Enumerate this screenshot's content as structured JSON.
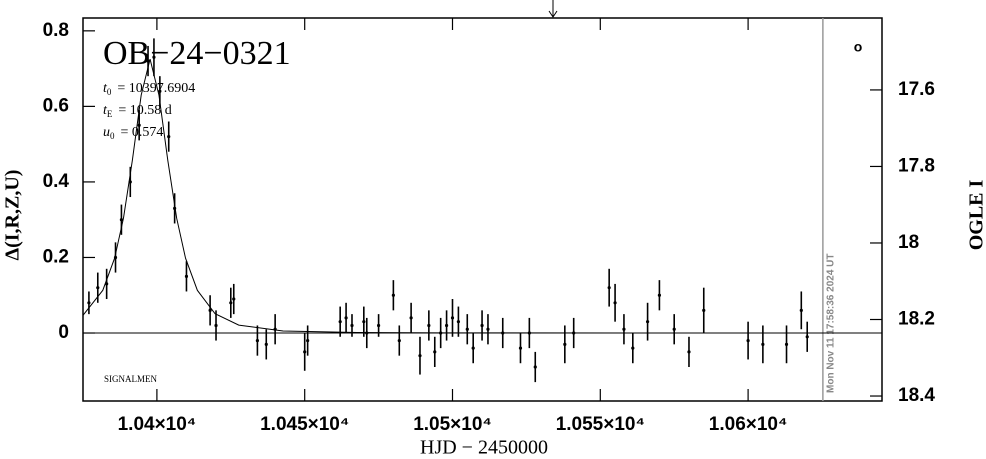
{
  "chart_data": {
    "type": "scatter",
    "title": "OB−24−0321",
    "parameters": [
      {
        "symbol": "t",
        "sub": "0",
        "text": "= 10397.6904"
      },
      {
        "symbol": "t",
        "sub": "E",
        "text": "= 10.58 d"
      },
      {
        "symbol": "u",
        "sub": "0",
        "text": "= 0.574"
      }
    ],
    "credit": "SIGNALMEN",
    "symbol_label": "o",
    "xlabel": "HJD − 2450000",
    "ylabel": "Δ(I,R,Z,U)",
    "y2label": "OGLE I",
    "xlim": [
      10375,
      10645.3
    ],
    "ylim": [
      -0.18,
      0.834
    ],
    "y2lim": [
      18.413,
      17.412
    ],
    "xticks": [
      {
        "value": 10400,
        "label": "1.04×10⁴"
      },
      {
        "value": 10450,
        "label": "1.045×10⁴"
      },
      {
        "value": 10500,
        "label": "1.05×10⁴"
      },
      {
        "value": 10550,
        "label": "1.055×10⁴"
      },
      {
        "value": 10600,
        "label": "1.06×10⁴"
      }
    ],
    "yticks": [
      0,
      0.2,
      0.4,
      0.6,
      0.8
    ],
    "y2ticks": [
      17.6,
      17.8,
      18,
      18.2,
      18.4
    ],
    "date_line": {
      "x": 10625.3,
      "label": "Mon Nov 11 17:58:36 2024 UT"
    },
    "arrow_x": 10534,
    "color": "#000000",
    "x": [
      10377,
      10380,
      10383,
      10386,
      10388,
      10391,
      10394,
      10397,
      10399,
      10401,
      10404,
      10406,
      10410,
      10418,
      10420,
      10425,
      10426,
      10434,
      10437,
      10440,
      10450,
      10451,
      10462,
      10464,
      10466,
      10470,
      10471,
      10475,
      10480,
      10482,
      10486,
      10489,
      10492,
      10494,
      10496,
      10498,
      10500,
      10502,
      10505,
      10507,
      10510,
      10512,
      10517,
      10523,
      10526,
      10528,
      10538,
      10541,
      10553,
      10555,
      10558,
      10561,
      10566,
      10570,
      10575,
      10580,
      10585,
      10600,
      10605,
      10613,
      10618,
      10620
    ],
    "values": [
      0.08,
      0.12,
      0.13,
      0.2,
      0.3,
      0.4,
      0.55,
      0.72,
      0.73,
      0.64,
      0.52,
      0.33,
      0.15,
      0.06,
      0.02,
      0.08,
      0.09,
      -0.02,
      -0.03,
      0.01,
      -0.05,
      -0.02,
      0.03,
      0.04,
      0.02,
      0.03,
      0.0,
      0.02,
      0.1,
      -0.02,
      0.04,
      -0.06,
      0.02,
      -0.05,
      0.0,
      0.02,
      0.04,
      0.03,
      0.01,
      -0.04,
      0.02,
      0.01,
      0.0,
      -0.04,
      0.0,
      -0.09,
      -0.03,
      0.0,
      0.12,
      0.08,
      0.01,
      -0.04,
      0.03,
      0.1,
      0.01,
      -0.05,
      0.06,
      -0.02,
      -0.03,
      -0.03,
      0.06,
      -0.01
    ],
    "errors": [
      0.03,
      0.04,
      0.04,
      0.04,
      0.04,
      0.04,
      0.04,
      0.04,
      0.05,
      0.04,
      0.04,
      0.04,
      0.04,
      0.04,
      0.04,
      0.04,
      0.04,
      0.04,
      0.04,
      0.04,
      0.05,
      0.04,
      0.04,
      0.04,
      0.03,
      0.04,
      0.04,
      0.03,
      0.04,
      0.04,
      0.04,
      0.05,
      0.04,
      0.04,
      0.04,
      0.04,
      0.05,
      0.04,
      0.04,
      0.04,
      0.04,
      0.04,
      0.04,
      0.04,
      0.04,
      0.04,
      0.05,
      0.04,
      0.05,
      0.05,
      0.04,
      0.04,
      0.05,
      0.04,
      0.04,
      0.04,
      0.06,
      0.05,
      0.05,
      0.05,
      0.05,
      0.04
    ],
    "model": {
      "x": [
        10375,
        10381.69,
        10385.69,
        10388.69,
        10391.69,
        10394.69,
        10397.69,
        10400.69,
        10403.69,
        10406.69,
        10409.69,
        10413.69,
        10419.69,
        10427.69,
        10442.69,
        10467.69,
        10497.69,
        10645.3
      ],
      "values": [
        0.047,
        0.113,
        0.198,
        0.304,
        0.457,
        0.63,
        0.725,
        0.63,
        0.457,
        0.304,
        0.198,
        0.113,
        0.051,
        0.021,
        0.0053,
        0.0012,
        0.0003,
        0
      ]
    }
  }
}
